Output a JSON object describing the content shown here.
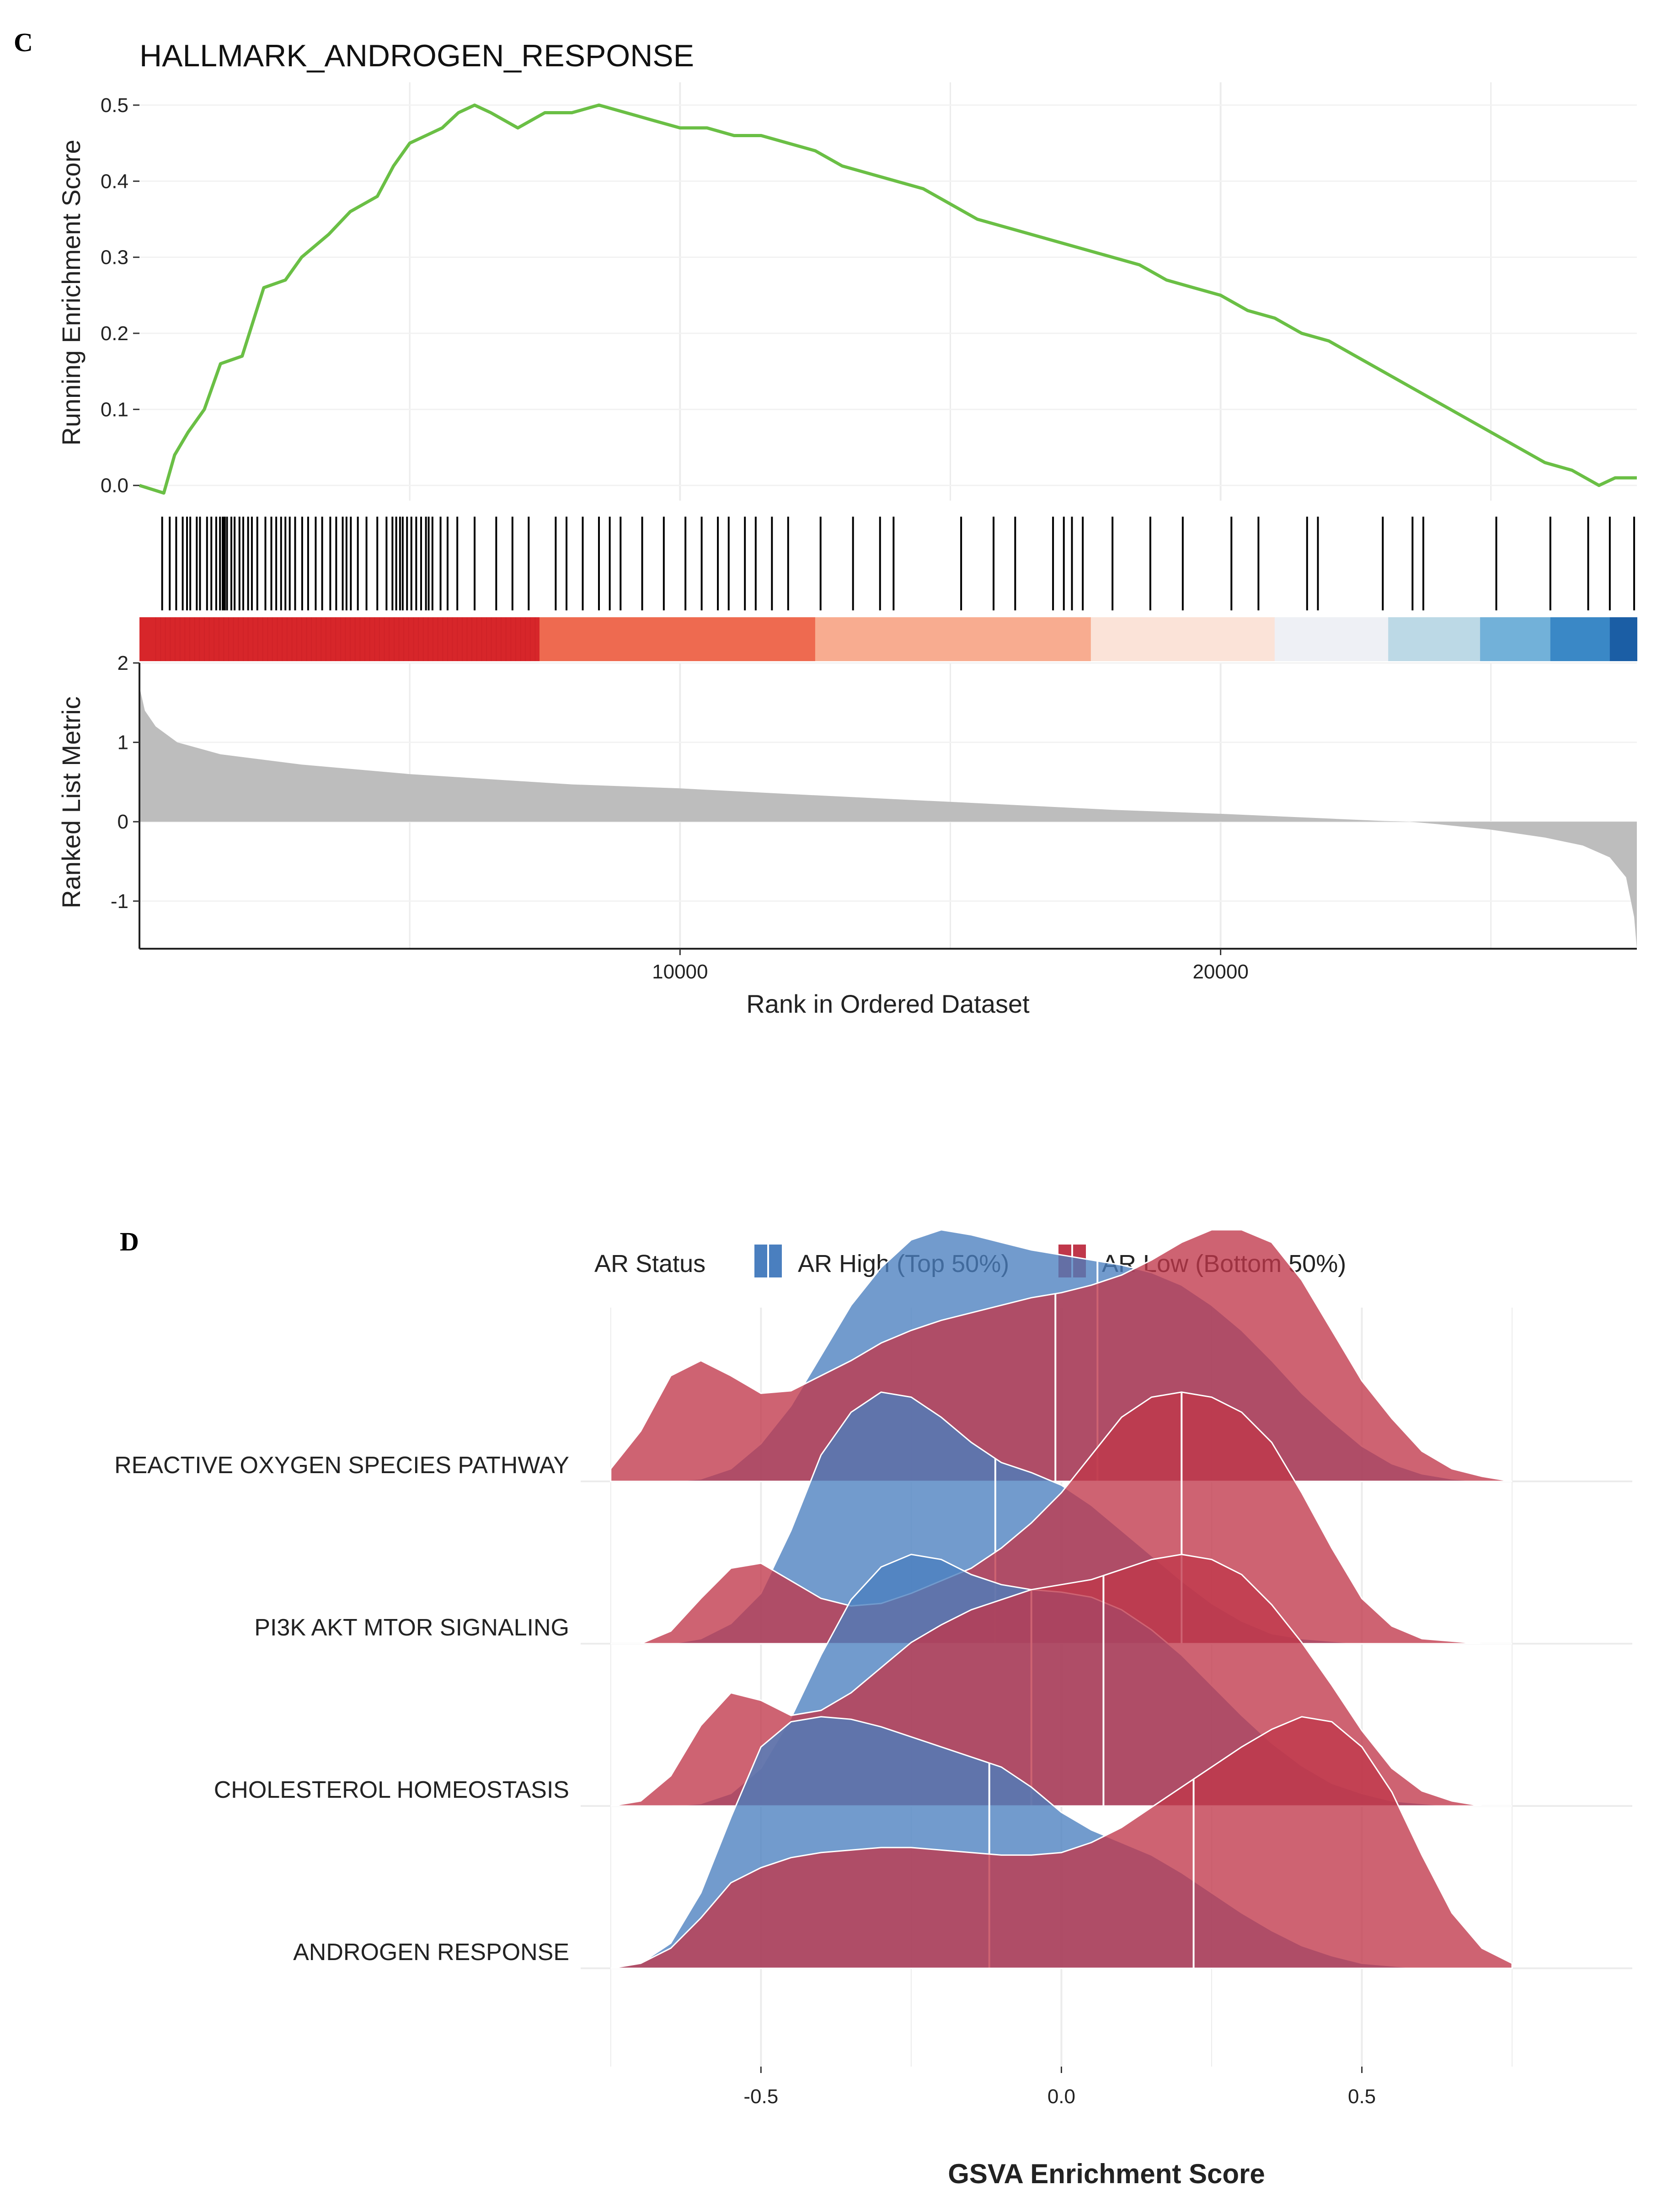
{
  "panel_c": {
    "letter": "C",
    "title": "HALLMARK_ANDROGEN_RESPONSE",
    "xlabel": "Rank in Ordered Dataset",
    "ylabel_top": "Running Enrichment Score",
    "ylabel_bottom": "Ranked List Metric",
    "x_ticks": [
      "10000",
      "20000"
    ],
    "y_ticks_top": [
      "0.0",
      "0.1",
      "0.2",
      "0.3",
      "0.4",
      "0.5"
    ],
    "y_ticks_bottom": [
      "-1",
      "0",
      "1",
      "2"
    ]
  },
  "panel_d": {
    "letter": "D",
    "legend_title": "AR Status",
    "legend_items": [
      {
        "label": "AR High (Top 50%)",
        "color": "#4a7fbf"
      },
      {
        "label": "AR Low (Bottom 50%)",
        "color": "#c0374a"
      }
    ],
    "xlabel": "GSVA Enrichment Score",
    "x_ticks": [
      "-0.5",
      "0.0",
      "0.5"
    ],
    "categories": [
      "REACTIVE OXYGEN SPECIES PATHWAY",
      "PI3K AKT MTOR SIGNALING",
      "CHOLESTEROL HOMEOSTASIS",
      "ANDROGEN RESPONSE"
    ]
  },
  "chart_data": [
    {
      "type": "line",
      "title": "HALLMARK_ANDROGEN_RESPONSE",
      "xlabel": "Rank in Ordered Dataset",
      "ylabel": "Running Enrichment Score",
      "xlim": [
        0,
        27700
      ],
      "ylim": [
        -0.02,
        0.53
      ],
      "line_color": "#6abf45",
      "x": [
        0,
        450,
        650,
        900,
        1200,
        1500,
        1900,
        2300,
        2700,
        3000,
        3500,
        3900,
        4400,
        4700,
        5000,
        5300,
        5600,
        5900,
        6200,
        6500,
        7000,
        7500,
        8000,
        8500,
        9000,
        9500,
        10000,
        10500,
        11000,
        11500,
        12000,
        12500,
        13000,
        13500,
        14000,
        14500,
        15000,
        15500,
        16000,
        16500,
        17000,
        17500,
        18000,
        18500,
        19000,
        19500,
        20000,
        20500,
        21000,
        21500,
        22000,
        22500,
        23000,
        23500,
        24000,
        24500,
        25000,
        25500,
        26000,
        26500,
        27000,
        27300,
        27700
      ],
      "y": [
        0.0,
        -0.01,
        0.04,
        0.07,
        0.1,
        0.16,
        0.17,
        0.26,
        0.27,
        0.3,
        0.33,
        0.36,
        0.38,
        0.42,
        0.45,
        0.46,
        0.47,
        0.49,
        0.5,
        0.49,
        0.47,
        0.49,
        0.49,
        0.5,
        0.49,
        0.48,
        0.47,
        0.47,
        0.46,
        0.46,
        0.45,
        0.44,
        0.42,
        0.41,
        0.4,
        0.39,
        0.37,
        0.35,
        0.34,
        0.33,
        0.32,
        0.31,
        0.3,
        0.29,
        0.27,
        0.26,
        0.25,
        0.23,
        0.22,
        0.2,
        0.19,
        0.17,
        0.15,
        0.13,
        0.11,
        0.09,
        0.07,
        0.05,
        0.03,
        0.02,
        0.0,
        0.01,
        0.01
      ],
      "gene_hits": [
        420,
        560,
        680,
        800,
        880,
        940,
        1060,
        1120,
        1250,
        1330,
        1420,
        1490,
        1540,
        1560,
        1580,
        1620,
        1700,
        1760,
        1850,
        1920,
        2010,
        2080,
        2180,
        2330,
        2440,
        2530,
        2620,
        2700,
        2780,
        2880,
        3010,
        3120,
        3260,
        3380,
        3530,
        3640,
        3760,
        3830,
        3910,
        4040,
        4200,
        4400,
        4570,
        4680,
        4750,
        4820,
        4870,
        4950,
        5030,
        5120,
        5210,
        5300,
        5350,
        5420,
        5570,
        5700,
        5880,
        6200,
        6600,
        6900,
        7200,
        7700,
        7900,
        8200,
        8500,
        8700,
        8900,
        9300,
        9700,
        10100,
        10400,
        10700,
        10900,
        11200,
        11400,
        11700,
        12000,
        12600,
        13200,
        13700,
        13950,
        15200,
        15800,
        16200,
        16900,
        17100,
        17250,
        17450,
        18000,
        18700,
        19300,
        20200,
        20700,
        21600,
        21800,
        23000,
        23550,
        23750,
        25100,
        26100,
        26800,
        27200,
        27650
      ],
      "grid": true
    },
    {
      "type": "area",
      "xlabel": "Rank in Ordered Dataset",
      "ylabel": "Ranked List Metric",
      "xlim": [
        0,
        27700
      ],
      "ylim": [
        -1.6,
        2.0
      ],
      "x": [
        0,
        100,
        300,
        700,
        1500,
        3000,
        5000,
        8000,
        10000,
        12000,
        15000,
        18000,
        20000,
        22000,
        23000,
        23500,
        24000,
        25000,
        26000,
        26700,
        27200,
        27500,
        27650,
        27700
      ],
      "y": [
        1.7,
        1.4,
        1.2,
        1.0,
        0.85,
        0.72,
        0.6,
        0.47,
        0.42,
        0.35,
        0.25,
        0.15,
        0.1,
        0.04,
        0.01,
        0.0,
        -0.03,
        -0.1,
        -0.2,
        -0.3,
        -0.45,
        -0.7,
        -1.2,
        -1.6
      ],
      "heatbar_colors": [
        "#d7262a",
        "#ee6a50",
        "#f8ac90",
        "#fbe3d8",
        "#eef0f5",
        "#bcd9e6",
        "#72b1d9",
        "#3a88c6",
        "#1b5ea5"
      ],
      "grid": true
    },
    {
      "type": "area",
      "subtype": "ridgeline",
      "xlabel": "GSVA Enrichment Score",
      "xlim": [
        -0.8,
        0.95
      ],
      "x_ticks": [
        -0.5,
        0.0,
        0.5
      ],
      "categories": [
        "REACTIVE OXYGEN SPECIES PATHWAY",
        "PI3K AKT MTOR SIGNALING",
        "CHOLESTEROL HOMEOSTASIS",
        "ANDROGEN RESPONSE"
      ],
      "x": [
        -0.75,
        -0.7,
        -0.65,
        -0.6,
        -0.55,
        -0.5,
        -0.45,
        -0.4,
        -0.35,
        -0.3,
        -0.25,
        -0.2,
        -0.15,
        -0.1,
        -0.05,
        0.0,
        0.05,
        0.1,
        0.15,
        0.2,
        0.25,
        0.3,
        0.35,
        0.4,
        0.45,
        0.5,
        0.55,
        0.6,
        0.65,
        0.7,
        0.75
      ],
      "series": [
        {
          "name": "AR High (Top 50%)",
          "densities": {
            "REACTIVE OXYGEN SPECIES PATHWAY": [
              0,
              0,
              0,
              0.01,
              0.05,
              0.15,
              0.3,
              0.5,
              0.7,
              0.85,
              0.96,
              1.0,
              0.98,
              0.95,
              0.92,
              0.9,
              0.88,
              0.86,
              0.83,
              0.78,
              0.7,
              0.6,
              0.48,
              0.35,
              0.24,
              0.14,
              0.07,
              0.03,
              0.01,
              0,
              0
            ],
            "PI3K AKT MTOR SIGNALING": [
              0,
              0,
              0,
              0.02,
              0.08,
              0.2,
              0.45,
              0.75,
              0.92,
              1.0,
              0.98,
              0.9,
              0.8,
              0.72,
              0.68,
              0.63,
              0.55,
              0.45,
              0.35,
              0.25,
              0.16,
              0.09,
              0.04,
              0.02,
              0.01,
              0,
              0,
              0,
              0,
              0,
              0
            ],
            "CHOLESTEROL HOMEOSTASIS": [
              0,
              0,
              0,
              0.01,
              0.05,
              0.15,
              0.35,
              0.6,
              0.82,
              0.95,
              1.0,
              0.98,
              0.92,
              0.88,
              0.86,
              0.85,
              0.83,
              0.78,
              0.7,
              0.6,
              0.48,
              0.36,
              0.25,
              0.16,
              0.09,
              0.05,
              0.02,
              0.01,
              0,
              0,
              0
            ],
            "ANDROGEN RESPONSE": [
              0,
              0.02,
              0.1,
              0.3,
              0.6,
              0.88,
              0.98,
              1.0,
              0.99,
              0.96,
              0.92,
              0.88,
              0.84,
              0.8,
              0.72,
              0.62,
              0.55,
              0.5,
              0.45,
              0.38,
              0.3,
              0.22,
              0.15,
              0.09,
              0.05,
              0.02,
              0.01,
              0,
              0,
              0,
              0
            ]
          },
          "median": {
            "REACTIVE OXYGEN SPECIES PATHWAY": 0.06,
            "PI3K AKT MTOR SIGNALING": -0.11,
            "CHOLESTEROL HOMEOSTASIS": -0.05,
            "ANDROGEN RESPONSE": -0.12
          }
        },
        {
          "name": "AR Low (Bottom 50%)",
          "densities": {
            "REACTIVE OXYGEN SPECIES PATHWAY": [
              0.05,
              0.2,
              0.42,
              0.48,
              0.42,
              0.35,
              0.36,
              0.42,
              0.48,
              0.55,
              0.6,
              0.64,
              0.67,
              0.7,
              0.73,
              0.75,
              0.78,
              0.82,
              0.88,
              0.95,
              1.0,
              1.0,
              0.95,
              0.8,
              0.6,
              0.4,
              0.25,
              0.12,
              0.05,
              0.02,
              0
            ],
            "PI3K AKT MTOR SIGNALING": [
              0,
              0,
              0.05,
              0.18,
              0.3,
              0.32,
              0.25,
              0.18,
              0.15,
              0.16,
              0.2,
              0.25,
              0.3,
              0.38,
              0.48,
              0.6,
              0.75,
              0.9,
              0.98,
              1.0,
              0.98,
              0.92,
              0.8,
              0.6,
              0.38,
              0.18,
              0.07,
              0.02,
              0.01,
              0,
              0
            ],
            "CHOLESTEROL HOMEOSTASIS": [
              0,
              0.02,
              0.12,
              0.32,
              0.45,
              0.42,
              0.36,
              0.38,
              0.45,
              0.55,
              0.65,
              0.72,
              0.78,
              0.82,
              0.86,
              0.88,
              0.9,
              0.94,
              0.98,
              1.0,
              0.98,
              0.92,
              0.8,
              0.65,
              0.48,
              0.3,
              0.15,
              0.06,
              0.02,
              0,
              0
            ],
            "ANDROGEN RESPONSE": [
              0,
              0.02,
              0.08,
              0.2,
              0.34,
              0.4,
              0.44,
              0.46,
              0.47,
              0.48,
              0.48,
              0.47,
              0.46,
              0.45,
              0.45,
              0.46,
              0.5,
              0.56,
              0.64,
              0.72,
              0.8,
              0.88,
              0.95,
              1.0,
              0.98,
              0.88,
              0.7,
              0.45,
              0.22,
              0.08,
              0.02
            ]
          },
          "median": {
            "REACTIVE OXYGEN SPECIES PATHWAY": -0.01,
            "PI3K AKT MTOR SIGNALING": 0.2,
            "CHOLESTEROL HOMEOSTASIS": 0.07,
            "ANDROGEN RESPONSE": 0.22
          }
        }
      ],
      "legend_position": "top",
      "grid": true
    }
  ]
}
